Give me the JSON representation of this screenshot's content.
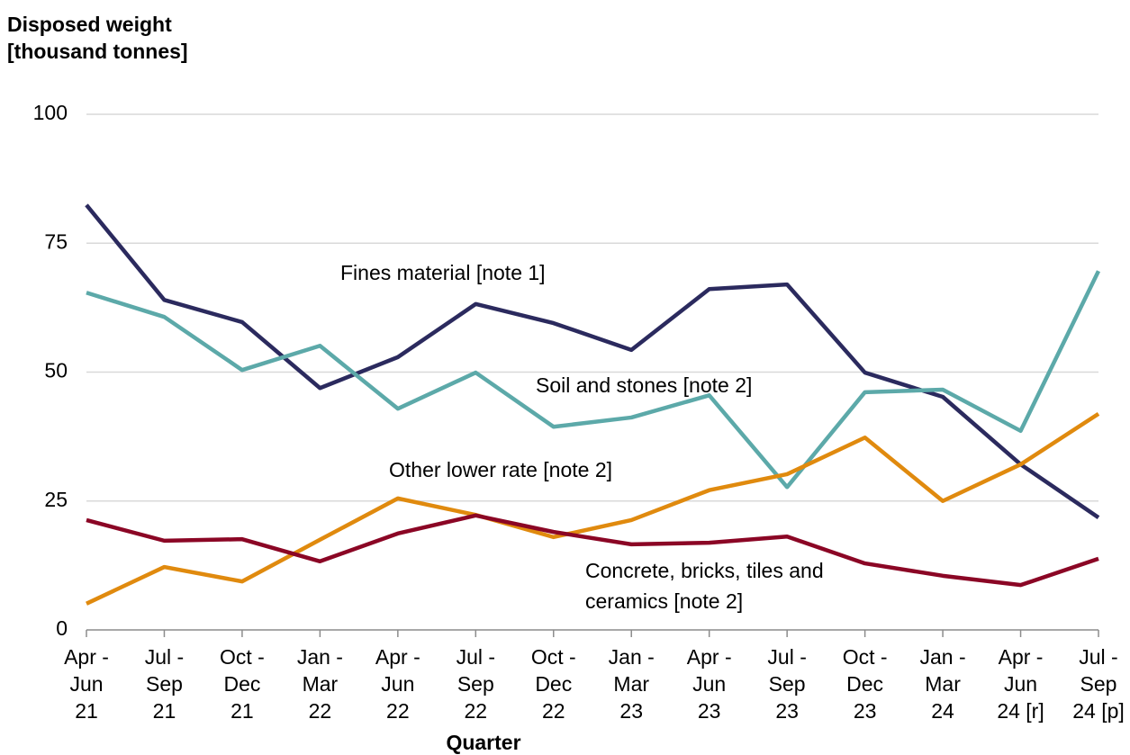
{
  "chart_data": {
    "type": "line",
    "y_label": "Disposed weight [thousand tonnes]",
    "x_label": "Quarter",
    "categories": [
      [
        "Apr -",
        "Jun",
        "21"
      ],
      [
        "Jul -",
        "Sep",
        "21"
      ],
      [
        "Oct -",
        "Dec",
        "21"
      ],
      [
        "Jan -",
        "Mar",
        "22"
      ],
      [
        "Apr -",
        "Jun",
        "22"
      ],
      [
        "Jul -",
        "Sep",
        "22"
      ],
      [
        "Oct -",
        "Dec",
        "22"
      ],
      [
        "Jan -",
        "Mar",
        "23"
      ],
      [
        "Apr -",
        "Jun",
        "23"
      ],
      [
        "Jul -",
        "Sep",
        "23"
      ],
      [
        "Oct -",
        "Dec",
        "23"
      ],
      [
        "Jan -",
        "Mar",
        "24"
      ],
      [
        "Apr -",
        "Jun",
        "24 [r]"
      ],
      [
        "Jul -",
        "Sep",
        "24 [p]"
      ]
    ],
    "series": [
      {
        "name": "Fines material [note 1]",
        "color": "#2b2a5e",
        "values": [
          82.4,
          64.0,
          59.7,
          46.9,
          52.9,
          63.2,
          59.5,
          54.3,
          66.1,
          67.0,
          49.9,
          45.2,
          32.1,
          21.8
        ]
      },
      {
        "name": "Soil and stones [note 2]",
        "color": "#5ca9a9",
        "values": [
          65.4,
          60.7,
          50.4,
          55.1,
          42.9,
          49.9,
          39.4,
          41.2,
          45.5,
          27.7,
          46.1,
          46.6,
          38.6,
          69.6
        ]
      },
      {
        "name": "Other lower rate [note 2]",
        "color": "#e08a0e",
        "values": [
          5.1,
          12.2,
          9.4,
          17.5,
          25.5,
          22.3,
          18.0,
          21.3,
          27.1,
          30.2,
          37.3,
          25.0,
          32.1,
          41.9
        ]
      },
      {
        "name": "Concrete, bricks, tiles and ceramics [note 2]",
        "color": "#8b0625",
        "values": [
          21.3,
          17.3,
          17.6,
          13.3,
          18.7,
          22.2,
          19.0,
          16.6,
          16.9,
          18.1,
          12.9,
          10.5,
          8.7,
          13.8
        ]
      }
    ],
    "ylim": [
      0,
      100
    ],
    "yticks": [
      0,
      25,
      50,
      75,
      100
    ],
    "grid": true
  }
}
